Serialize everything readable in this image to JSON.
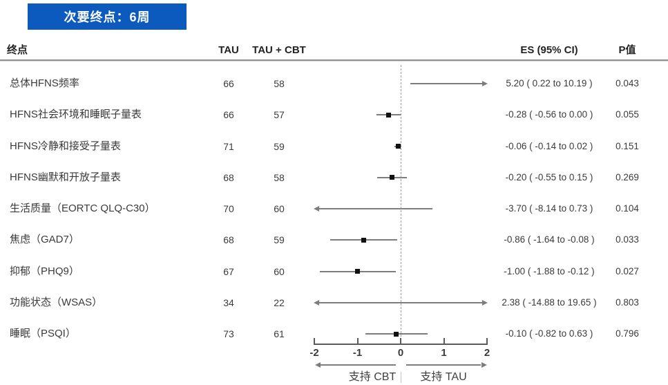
{
  "banner": {
    "label": "次要终点：6周"
  },
  "columns": {
    "endpoint": "终点",
    "tau": "TAU",
    "tau_cbt": "TAU + CBT",
    "es": "ES (95% CI)",
    "p": "P值"
  },
  "colors": {
    "banner_bg": "#0d5abe",
    "banner_text": "#ffffff",
    "ci_line": "#7d7d7d",
    "marker": "#111111",
    "axis": "#5a5a5a",
    "dashed_zero_line": "#9a9a9a"
  },
  "chart_data": {
    "type": "forest",
    "title": "次要终点：6周",
    "x_ticks": [
      -2,
      -1,
      0,
      1,
      2
    ],
    "xlim": [
      -2,
      2
    ],
    "zero_line": 0,
    "favors_left": "支持 CBT",
    "favors_right": "支持 TAU",
    "column_headers": [
      "终点",
      "TAU",
      "TAU + CBT",
      "ES (95% CI)",
      "P值"
    ],
    "rows": [
      {
        "endpoint": "总体HFNS频率",
        "tau": "66",
        "tau_cbt": "58",
        "es": 5.2,
        "lo": 0.22,
        "hi": 10.19,
        "es_text": "5.20 ( 0.22 to 10.19 )",
        "p": "0.043"
      },
      {
        "endpoint": "HFNS社会环境和睡眠子量表",
        "tau": "66",
        "tau_cbt": "57",
        "es": -0.28,
        "lo": -0.56,
        "hi": 0.0,
        "es_text": "-0.28 ( -0.56 to 0.00 )",
        "p": "0.055"
      },
      {
        "endpoint": "HFNS冷静和接受子量表",
        "tau": "71",
        "tau_cbt": "59",
        "es": -0.06,
        "lo": -0.14,
        "hi": 0.02,
        "es_text": "-0.06 ( -0.14 to 0.02 )",
        "p": "0.151"
      },
      {
        "endpoint": "HFNS幽默和开放子量表",
        "tau": "68",
        "tau_cbt": "58",
        "es": -0.2,
        "lo": -0.55,
        "hi": 0.15,
        "es_text": "-0.20 ( -0.55 to 0.15 )",
        "p": "0.269"
      },
      {
        "endpoint": "生活质量（EORTC QLQ-C30）",
        "tau": "70",
        "tau_cbt": "60",
        "es": -3.7,
        "lo": -8.14,
        "hi": 0.73,
        "es_text": "-3.70 ( -8.14 to 0.73 )",
        "p": "0.104"
      },
      {
        "endpoint": "焦虑（GAD7）",
        "tau": "68",
        "tau_cbt": "59",
        "es": -0.86,
        "lo": -1.64,
        "hi": -0.08,
        "es_text": "-0.86 ( -1.64 to -0.08 )",
        "p": "0.033"
      },
      {
        "endpoint": "抑郁（PHQ9）",
        "tau": "67",
        "tau_cbt": "60",
        "es": -1.0,
        "lo": -1.88,
        "hi": -0.12,
        "es_text": "-1.00 ( -1.88 to -0.12 )",
        "p": "0.027"
      },
      {
        "endpoint": "功能状态（WSAS）",
        "tau": "34",
        "tau_cbt": "22",
        "es": 2.38,
        "lo": -14.88,
        "hi": 19.65,
        "es_text": "2.38 ( -14.88 to 19.65 )",
        "p": "0.803"
      },
      {
        "endpoint": "睡眠（PSQI）",
        "tau": "73",
        "tau_cbt": "61",
        "es": -0.1,
        "lo": -0.82,
        "hi": 0.63,
        "es_text": "-0.10 ( -0.82 to 0.63 )",
        "p": "0.796"
      }
    ]
  }
}
